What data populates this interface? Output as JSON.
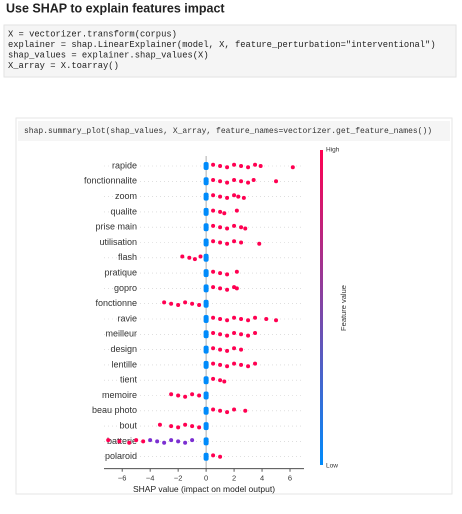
{
  "header": {
    "title": "Use SHAP to explain features impact"
  },
  "code_cell": {
    "lines": [
      "X = vectorizer.transform(corpus)",
      "explainer = shap.LinearExplainer(model, X, feature_perturbation=\"interventional\")",
      "shap_values = explainer.shap_values(X)",
      "X_array = X.toarray()"
    ]
  },
  "output_cell": {
    "code": "shap.summary_plot(shap_values, X_array, feature_names=vectorizer.get_feature_names())"
  },
  "chart_data": {
    "type": "beeswarm",
    "categories": [
      "rapide",
      "fonctionnalite",
      "zoom",
      "qualite",
      "prise main",
      "utilisation",
      "flash",
      "pratique",
      "gopro",
      "fonctionne",
      "ravie",
      "meilleur",
      "design",
      "lentille",
      "tient",
      "memoire",
      "beau photo",
      "bout",
      "batterie",
      "polaroid"
    ],
    "series": [
      {
        "color": "#ff0051",
        "values": [
          [
            0.5,
            1,
            1.5,
            2,
            2.5,
            3,
            3.5,
            3.9,
            6.2
          ],
          [
            0.5,
            1,
            1.5,
            2,
            2.5,
            3,
            3.4,
            5
          ],
          [
            0.5,
            1,
            1.5,
            2,
            2.3,
            2.7
          ],
          [
            0.5,
            1,
            1.3,
            2.2
          ],
          [
            0.5,
            1,
            1.5,
            2,
            2.5,
            2.8
          ],
          [
            0.5,
            1,
            1.5,
            2,
            2.5,
            3.8
          ],
          [
            -1.7,
            -1.2,
            -0.8,
            -0.4
          ],
          [
            0.5,
            1,
            1.5,
            2.2
          ],
          [
            0.5,
            1,
            1.5,
            2,
            2.2
          ],
          [
            -3,
            -2.5,
            -2,
            -1.5,
            -1,
            -0.5
          ],
          [
            0.5,
            1,
            1.5,
            2,
            2.5,
            3,
            3.5,
            4.3,
            5
          ],
          [
            0.5,
            1,
            1.5,
            2,
            2.5,
            3,
            3.5
          ],
          [
            0.5,
            1,
            1.5,
            2,
            2.5
          ],
          [
            0.5,
            1,
            1.5,
            2,
            2.5,
            3,
            3.5
          ],
          [
            0.5,
            1,
            1.3
          ],
          [
            -2.5,
            -2,
            -1.5,
            -1,
            -0.5
          ],
          [
            0.5,
            1,
            1.5,
            2,
            2.8
          ],
          [
            -3.3,
            -2.5,
            -2,
            -1.5,
            -1,
            -0.5
          ],
          [
            -7,
            -6.2,
            -5.5,
            -5,
            -4.5
          ],
          [
            0.5,
            1
          ]
        ]
      },
      {
        "color": "#7b2fd1",
        "values": [
          [],
          [],
          [],
          [],
          [],
          [],
          [],
          [],
          [],
          [],
          [],
          [],
          [],
          [],
          [],
          [],
          [],
          [],
          [
            -4,
            -3.5,
            -3,
            -2.5,
            -2,
            -1.5,
            -1
          ],
          []
        ]
      },
      {
        "color": "#008bfb",
        "values": [
          [
            0
          ],
          [
            0
          ],
          [
            0
          ],
          [
            0
          ],
          [
            0
          ],
          [
            0
          ],
          [
            0
          ],
          [
            0
          ],
          [
            0
          ],
          [
            0
          ],
          [
            0
          ],
          [
            0
          ],
          [
            0
          ],
          [
            0
          ],
          [
            0
          ],
          [
            0
          ],
          [
            0
          ],
          [
            0
          ],
          [
            0
          ],
          [
            0
          ]
        ]
      }
    ],
    "xlim": [
      -7.3,
      7
    ],
    "xticks": [
      {
        "value": -6,
        "label": "−6"
      },
      {
        "value": -4,
        "label": "−4"
      },
      {
        "value": -2,
        "label": "−2"
      },
      0,
      2,
      4,
      6
    ],
    "xlabel": "SHAP value (impact on model output)",
    "colorbar": {
      "high": "High",
      "low": "Low",
      "label": "Feature value",
      "high_color": "#ff0051",
      "low_color": "#008bfb"
    }
  }
}
